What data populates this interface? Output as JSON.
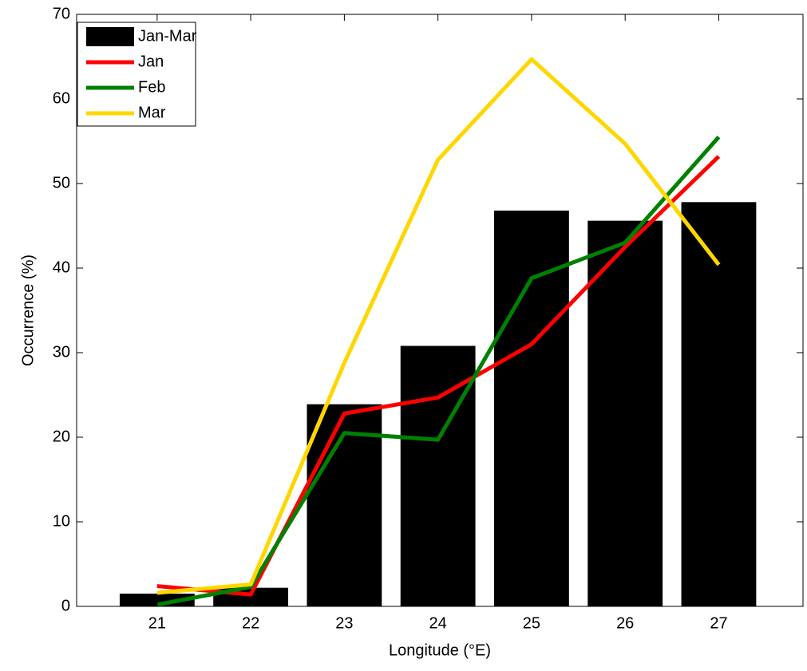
{
  "chart_data": {
    "type": "bar",
    "xlabel": "Longitude (°E)",
    "ylabel": "Occurrence (%)",
    "x": [
      21,
      22,
      23,
      24,
      25,
      26,
      27
    ],
    "series": [
      {
        "name": "Jan-Mar",
        "type": "bar",
        "color": "#000000",
        "values": [
          1.5,
          2.2,
          23.9,
          30.8,
          46.8,
          45.6,
          47.8
        ]
      },
      {
        "name": "Jan",
        "type": "line",
        "color": "#ff0000",
        "values": [
          2.4,
          1.4,
          22.8,
          24.7,
          31.0,
          42.5,
          53.2
        ]
      },
      {
        "name": "Feb",
        "type": "line",
        "color": "#008000",
        "values": [
          0.2,
          2.3,
          20.5,
          19.7,
          38.8,
          43.0,
          55.5
        ]
      },
      {
        "name": "Mar",
        "type": "line",
        "color": "#ffd700",
        "values": [
          1.6,
          2.6,
          28.8,
          52.8,
          64.7,
          54.7,
          40.4
        ]
      }
    ],
    "xlim": [
      20.14,
      27.9
    ],
    "xticks": [
      21,
      22,
      23,
      24,
      25,
      26,
      27
    ],
    "ylim": [
      0,
      70
    ],
    "yticks": [
      0,
      10,
      20,
      30,
      40,
      50,
      60,
      70
    ],
    "legend": "upper-left"
  }
}
